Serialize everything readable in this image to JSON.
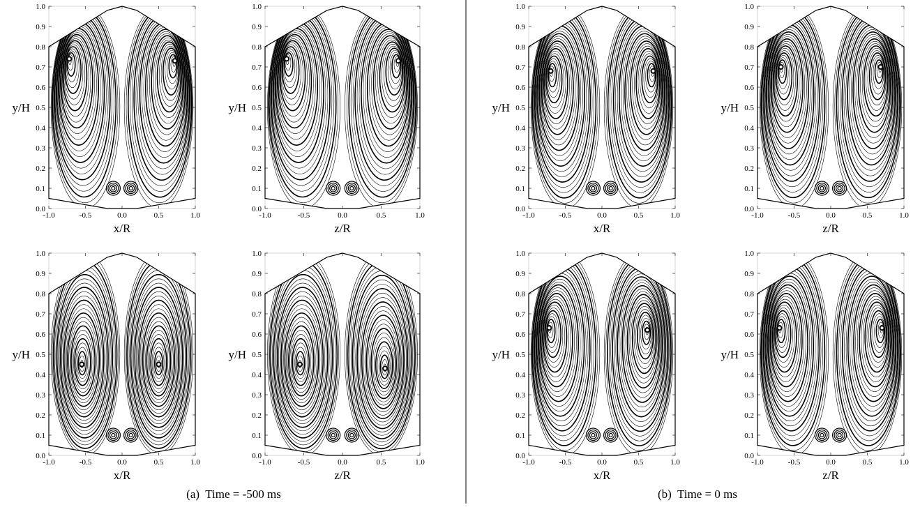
{
  "panels": [
    {
      "ylabel": "y/H",
      "xlabel": "x/R"
    },
    {
      "ylabel": "y/H",
      "xlabel": "z/R"
    },
    {
      "ylabel": "y/H",
      "xlabel": "x/R"
    },
    {
      "ylabel": "y/H",
      "xlabel": "z/R"
    },
    {
      "ylabel": "y/H",
      "xlabel": "x/R"
    },
    {
      "ylabel": "y/H",
      "xlabel": "z/R"
    },
    {
      "ylabel": "y/H",
      "xlabel": "x/R"
    },
    {
      "ylabel": "y/H",
      "xlabel": "z/R"
    }
  ],
  "xticks": [
    "-1.0",
    "-0.5",
    "0.0",
    "0.5",
    "1.0"
  ],
  "yticks": [
    "0.0",
    "0.1",
    "0.2",
    "0.3",
    "0.4",
    "0.5",
    "0.6",
    "0.7",
    "0.8",
    "0.9",
    "1.0"
  ],
  "captions": [
    "(a)  Time = -500 ms",
    "(b)  Time = 0 ms"
  ]
}
